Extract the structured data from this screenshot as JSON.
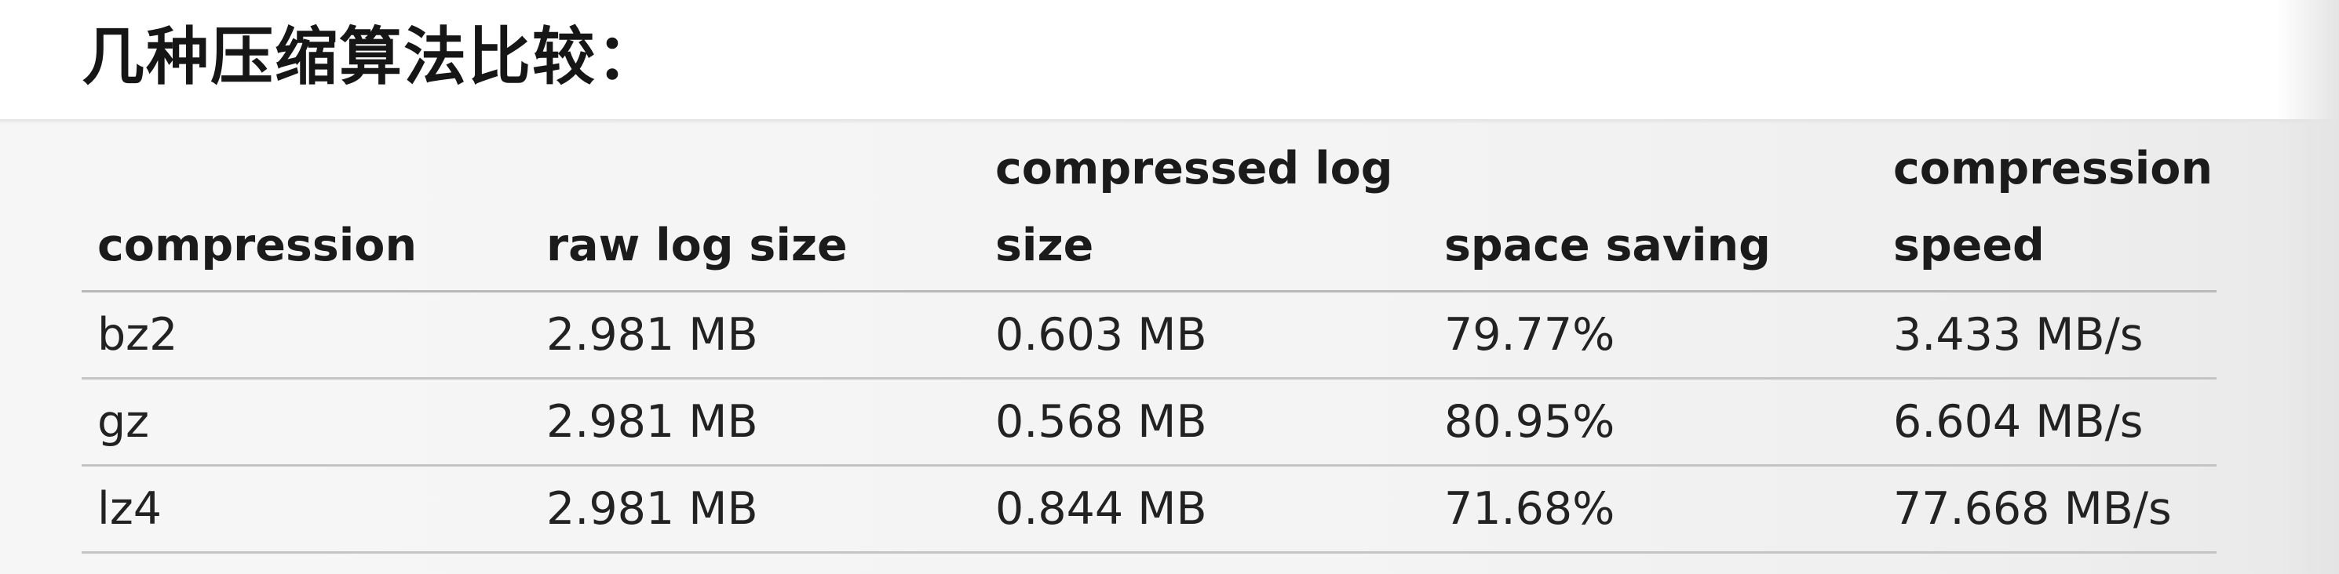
{
  "page": {
    "title": "几种压缩算法比较："
  },
  "table": {
    "columns": [
      "compression",
      "raw log size",
      "compressed log size",
      "space saving",
      "compression speed"
    ],
    "rows": [
      [
        "bz2",
        "2.981 MB",
        "0.603 MB",
        "79.77%",
        "3.433 MB/s"
      ],
      [
        "gz",
        "2.981 MB",
        "0.568 MB",
        "80.95%",
        "6.604 MB/s"
      ],
      [
        "lz4",
        "2.981 MB",
        "0.844 MB",
        "71.68%",
        "77.668 MB/s"
      ]
    ]
  }
}
